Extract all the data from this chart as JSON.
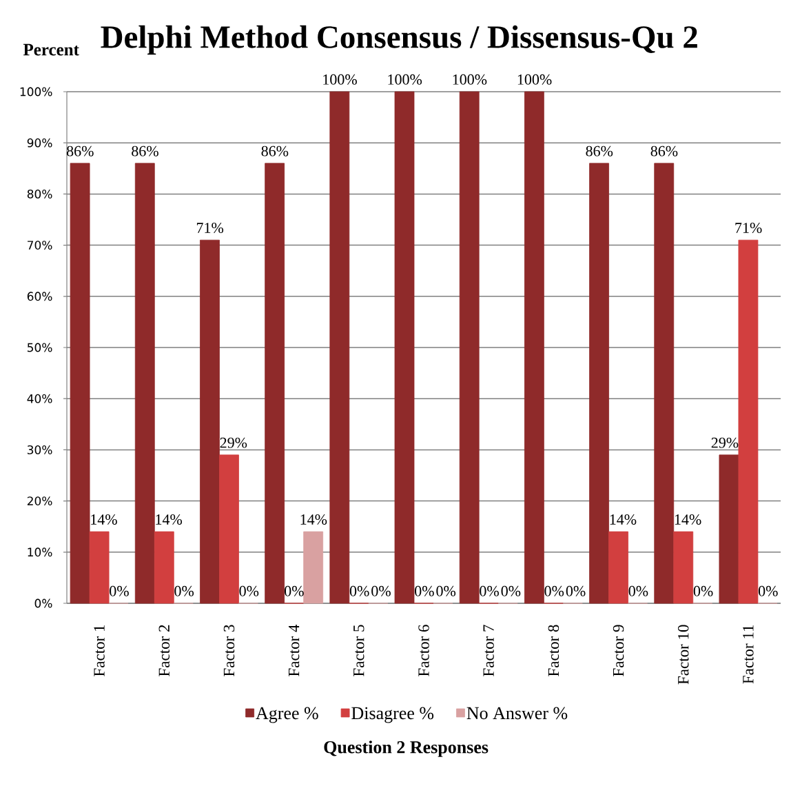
{
  "chart_data": {
    "type": "bar",
    "title": "Delphi Method Consensus / Dissensus-Qu 2",
    "ylabel": "Percent",
    "xlabel": "Question 2 Responses",
    "categories": [
      "Factor 1",
      "Factor 2",
      "Factor 3",
      "Factor 4",
      "Factor 5",
      "Factor 6",
      "Factor 7",
      "Factor 8",
      "Factor 9",
      "Factor 10",
      "Factor 11"
    ],
    "series": [
      {
        "name": "Agree %",
        "color": "#8f2a2a",
        "values": [
          86,
          86,
          71,
          86,
          100,
          100,
          100,
          100,
          86,
          86,
          29
        ],
        "value_labels": [
          "86%",
          "86%",
          "71%",
          "86%",
          "100%",
          "100%",
          "100%",
          "100%",
          "86%",
          "86%",
          "29%"
        ]
      },
      {
        "name": "Disagree %",
        "color": "#d23f3f",
        "values": [
          14,
          14,
          29,
          0,
          0,
          0,
          0,
          0,
          14,
          14,
          71
        ],
        "value_labels": [
          "14%",
          "14%",
          "29%",
          "0%",
          "0%",
          "0%",
          "0%",
          "0%",
          "14%",
          "14%",
          "71%"
        ]
      },
      {
        "name": "No Answer %",
        "color": "#d9a1a1",
        "values": [
          0,
          0,
          0,
          14,
          0,
          0,
          0,
          0,
          0,
          0,
          0
        ],
        "value_labels": [
          "0%",
          "0%",
          "0%",
          "14%",
          "0%",
          "0%",
          "0%",
          "0%",
          "0%",
          "0%",
          "0%"
        ]
      }
    ],
    "ylim": [
      0,
      100
    ],
    "yticks": [
      {
        "value": 0,
        "label": "0%"
      },
      {
        "value": 10,
        "label": "10%"
      },
      {
        "value": 20,
        "label": "20%"
      },
      {
        "value": 30,
        "label": "30%"
      },
      {
        "value": 40,
        "label": "40%"
      },
      {
        "value": 50,
        "label": "50%"
      },
      {
        "value": 60,
        "label": "60%"
      },
      {
        "value": 70,
        "label": "70%"
      },
      {
        "value": 80,
        "label": "80%"
      },
      {
        "value": 90,
        "label": "90%"
      },
      {
        "value": 100,
        "label": "100%"
      }
    ],
    "grid": "y",
    "legend": "bottom"
  }
}
